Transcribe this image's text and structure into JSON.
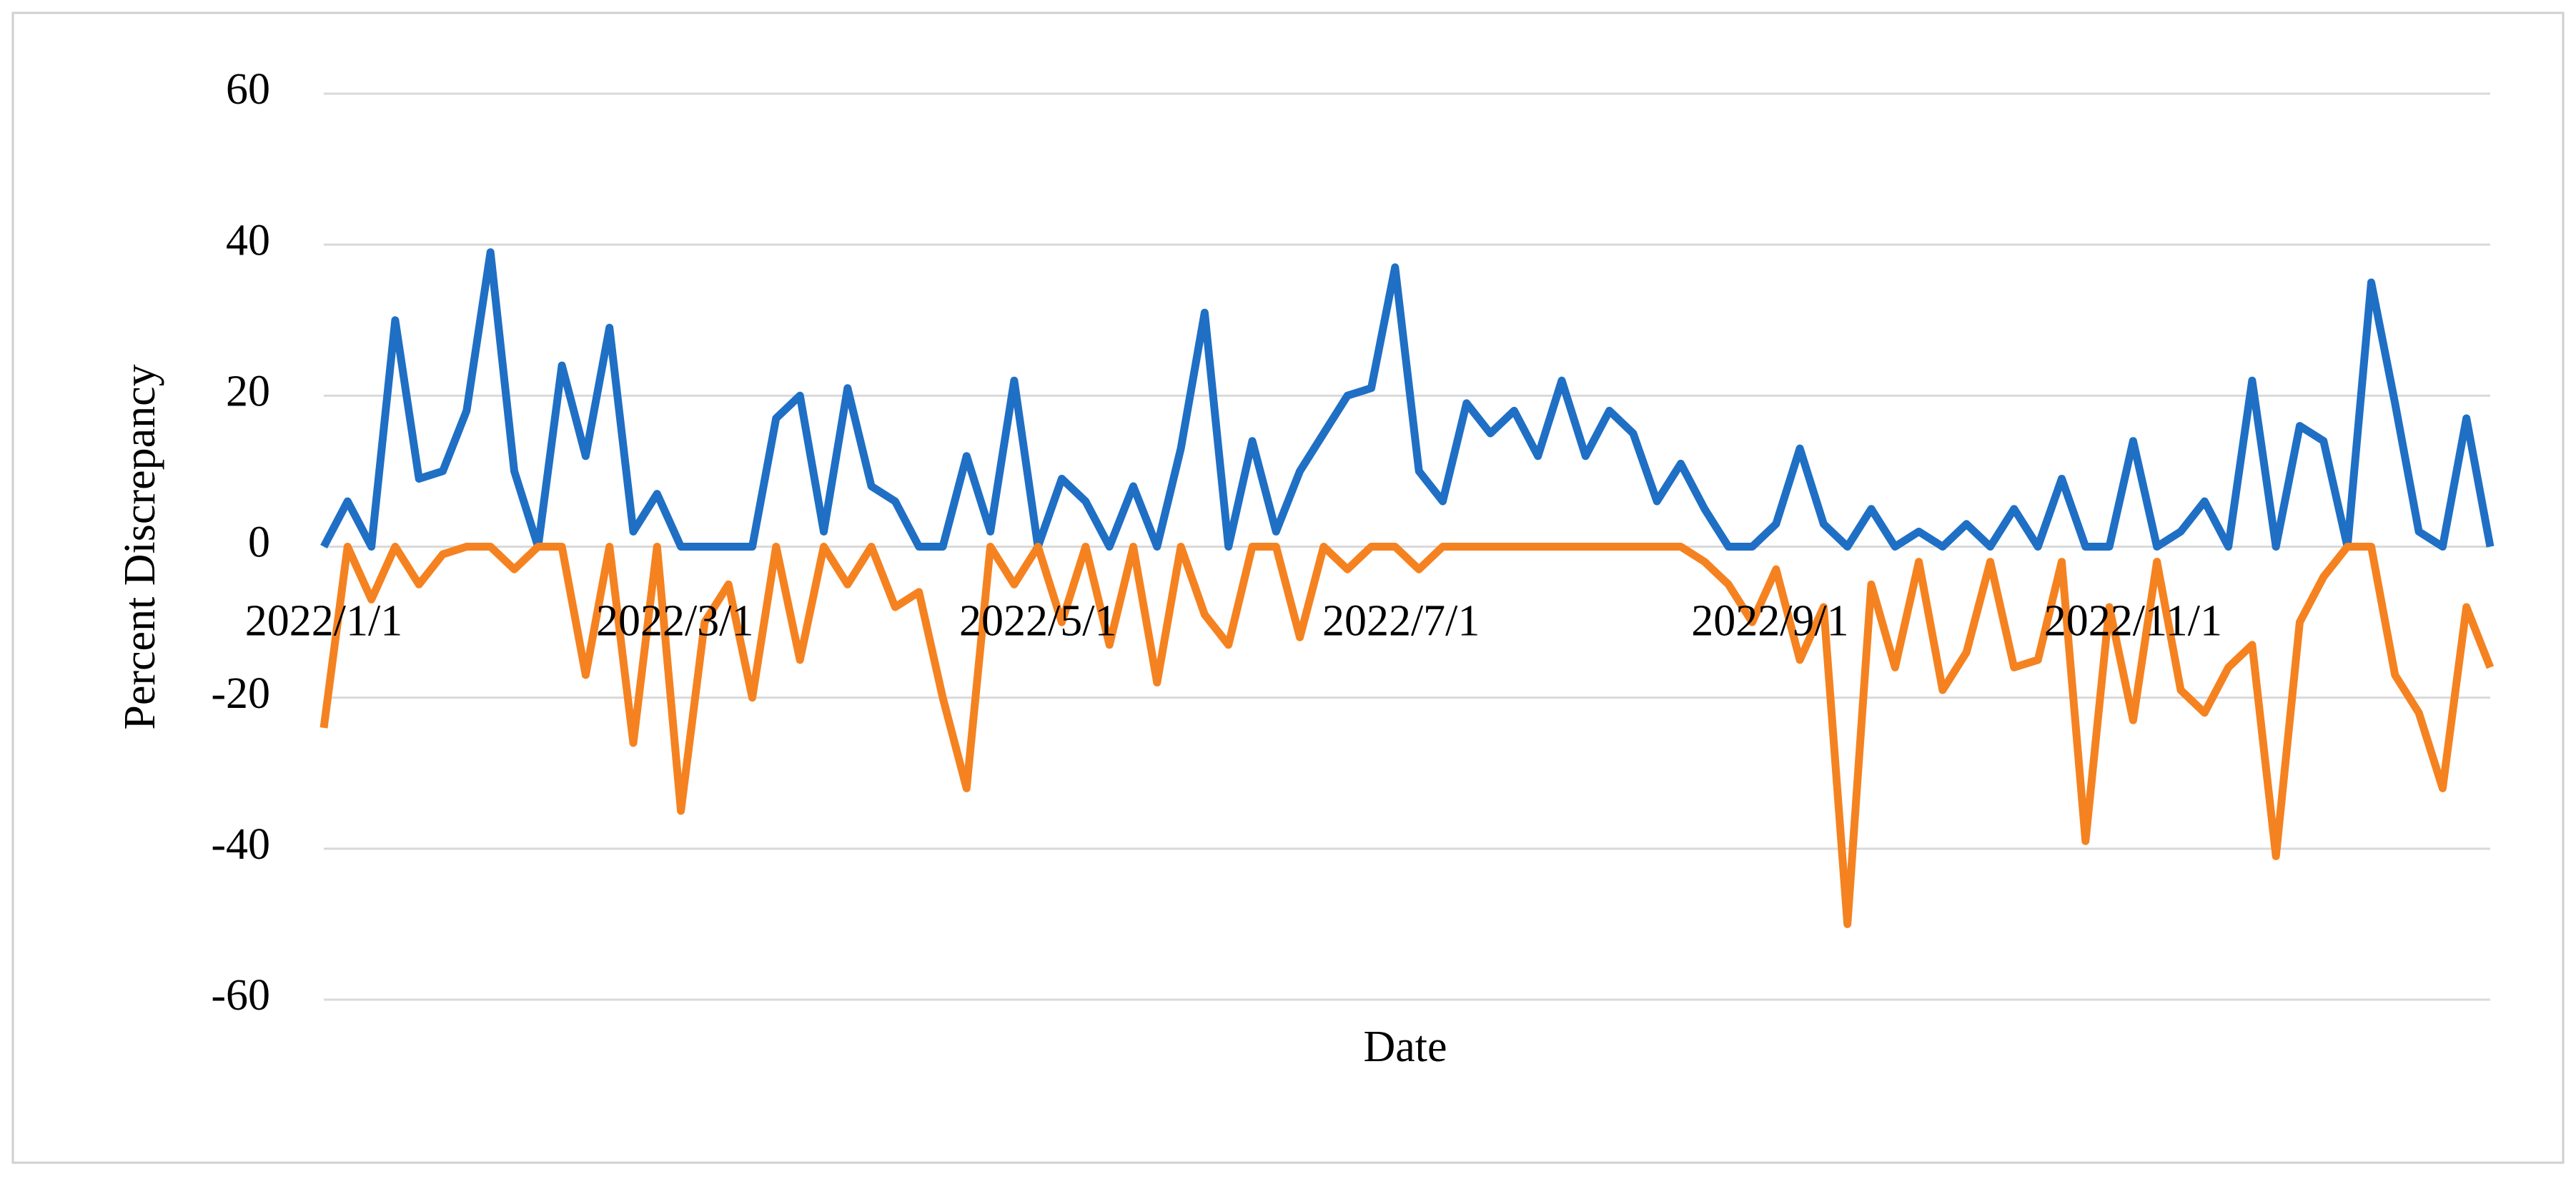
{
  "chart_data": {
    "type": "line",
    "xlabel": "Date",
    "ylabel": "Percent Discrepancy",
    "x": [
      "2022/1/1",
      "2022/1/5",
      "2022/1/9",
      "2022/1/13",
      "2022/1/17",
      "2022/1/21",
      "2022/1/25",
      "2022/1/29",
      "2022/2/2",
      "2022/2/6",
      "2022/2/10",
      "2022/2/14",
      "2022/2/18",
      "2022/2/22",
      "2022/2/26",
      "2022/3/2",
      "2022/3/6",
      "2022/3/10",
      "2022/3/14",
      "2022/3/18",
      "2022/3/22",
      "2022/3/26",
      "2022/3/30",
      "2022/4/3",
      "2022/4/7",
      "2022/4/11",
      "2022/4/15",
      "2022/4/19",
      "2022/4/23",
      "2022/4/27",
      "2022/5/1",
      "2022/5/5",
      "2022/5/9",
      "2022/5/13",
      "2022/5/17",
      "2022/5/21",
      "2022/5/25",
      "2022/5/29",
      "2022/6/2",
      "2022/6/6",
      "2022/6/10",
      "2022/6/14",
      "2022/6/18",
      "2022/6/22",
      "2022/6/26",
      "2022/6/30",
      "2022/7/4",
      "2022/7/8",
      "2022/7/12",
      "2022/7/16",
      "2022/7/20",
      "2022/7/24",
      "2022/7/28",
      "2022/8/1",
      "2022/8/5",
      "2022/8/9",
      "2022/8/13",
      "2022/8/17",
      "2022/8/21",
      "2022/8/25",
      "2022/8/29",
      "2022/9/2",
      "2022/9/6",
      "2022/9/10",
      "2022/9/14",
      "2022/9/18",
      "2022/9/22",
      "2022/9/26",
      "2022/9/30",
      "2022/10/4",
      "2022/10/8",
      "2022/10/12",
      "2022/10/16",
      "2022/10/20",
      "2022/10/24",
      "2022/10/28",
      "2022/11/1",
      "2022/11/5",
      "2022/11/9",
      "2022/11/13",
      "2022/11/17",
      "2022/11/21",
      "2022/11/25",
      "2022/11/29",
      "2022/12/3",
      "2022/12/7",
      "2022/12/11",
      "2022/12/15",
      "2022/12/19",
      "2022/12/23",
      "2022/12/27",
      "2022/12/31"
    ],
    "series": [
      {
        "color": "#1f6fc5",
        "values": [
          0,
          6,
          0,
          30,
          9,
          10,
          18,
          39,
          10,
          0,
          24,
          12,
          29,
          2,
          7,
          0,
          0,
          0,
          0,
          17,
          20,
          2,
          21,
          8,
          6,
          0,
          0,
          12,
          2,
          22,
          0,
          9,
          6,
          0,
          8,
          0,
          13,
          31,
          0,
          14,
          2,
          10,
          15,
          20,
          21,
          37,
          10,
          6,
          19,
          15,
          18,
          12,
          22,
          12,
          18,
          15,
          6,
          11,
          5,
          0,
          0,
          3,
          13,
          3,
          0,
          5,
          0,
          2,
          0,
          3,
          0,
          5,
          0,
          9,
          0,
          0,
          14,
          0,
          2,
          6,
          0,
          22,
          0,
          16,
          14,
          0,
          35,
          19,
          2,
          0,
          17,
          0
        ]
      },
      {
        "color": "#f58220",
        "values": [
          -24,
          0,
          -7,
          0,
          -5,
          -1,
          0,
          0,
          -3,
          0,
          0,
          -17,
          0,
          -26,
          0,
          -35,
          -10,
          -5,
          -20,
          0,
          -15,
          0,
          -5,
          0,
          -8,
          -6,
          -20,
          -32,
          0,
          -5,
          0,
          -10,
          0,
          -13,
          0,
          -18,
          0,
          -9,
          -13,
          0,
          0,
          -12,
          0,
          -3,
          0,
          0,
          -3,
          0,
          0,
          0,
          0,
          0,
          0,
          0,
          0,
          0,
          0,
          0,
          -2,
          -5,
          -10,
          -3,
          -15,
          -8,
          -50,
          -5,
          -16,
          -2,
          -19,
          -14,
          -2,
          -16,
          -15,
          -2,
          -39,
          -8,
          -23,
          -2,
          -19,
          -22,
          -16,
          -13,
          -41,
          -10,
          -4,
          0,
          0,
          -17,
          -22,
          -32,
          -8,
          -16
        ]
      }
    ],
    "xlim": [
      "2022/1/1",
      "2022/12/31"
    ],
    "xticks": [
      "2022/1/1",
      "2022/3/1",
      "2022/5/1",
      "2022/7/1",
      "2022/9/1",
      "2022/11/1"
    ],
    "ylim": [
      -60,
      60
    ],
    "yticks": [
      -60,
      -40,
      -20,
      0,
      20,
      40,
      60
    ],
    "grid": true
  }
}
